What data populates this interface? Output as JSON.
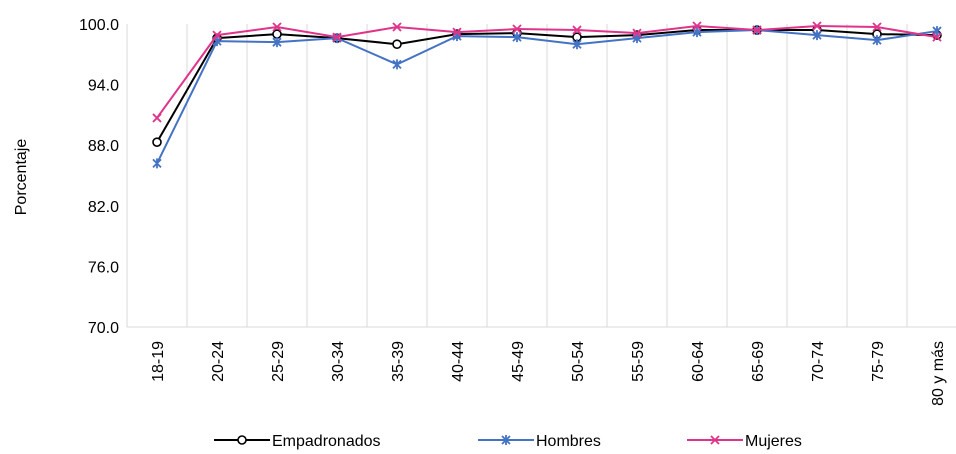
{
  "chart_data": {
    "type": "line",
    "title": "",
    "xlabel": "",
    "ylabel": "Porcentaje",
    "ylim": [
      70,
      100
    ],
    "yticks": [
      "70.0",
      "76.0",
      "82.0",
      "88.0",
      "94.0",
      "100.0"
    ],
    "grid": "vertical",
    "legend_position": "bottom",
    "categories": [
      "18-19",
      "20-24",
      "25-29",
      "30-34",
      "35-39",
      "40-44",
      "45-49",
      "50-54",
      "55-59",
      "60-64",
      "65-69",
      "70-74",
      "75-79",
      "80 y más"
    ],
    "series": [
      {
        "name": "Empadronados",
        "color": "#000000",
        "marker": "circle",
        "values": [
          88.3,
          98.6,
          99.0,
          98.6,
          98.0,
          99.0,
          99.1,
          98.7,
          98.9,
          99.4,
          99.4,
          99.4,
          99.0,
          98.9
        ]
      },
      {
        "name": "Hombres",
        "color": "#4472C4",
        "marker": "asterisk",
        "values": [
          86.2,
          98.3,
          98.2,
          98.6,
          96.0,
          98.8,
          98.7,
          98.0,
          98.6,
          99.2,
          99.4,
          98.9,
          98.4,
          99.3
        ]
      },
      {
        "name": "Mujeres",
        "color": "#E0338A",
        "marker": "x",
        "values": [
          90.7,
          98.9,
          99.7,
          98.7,
          99.7,
          99.2,
          99.5,
          99.4,
          99.1,
          99.8,
          99.4,
          99.8,
          99.7,
          98.7
        ]
      }
    ]
  }
}
